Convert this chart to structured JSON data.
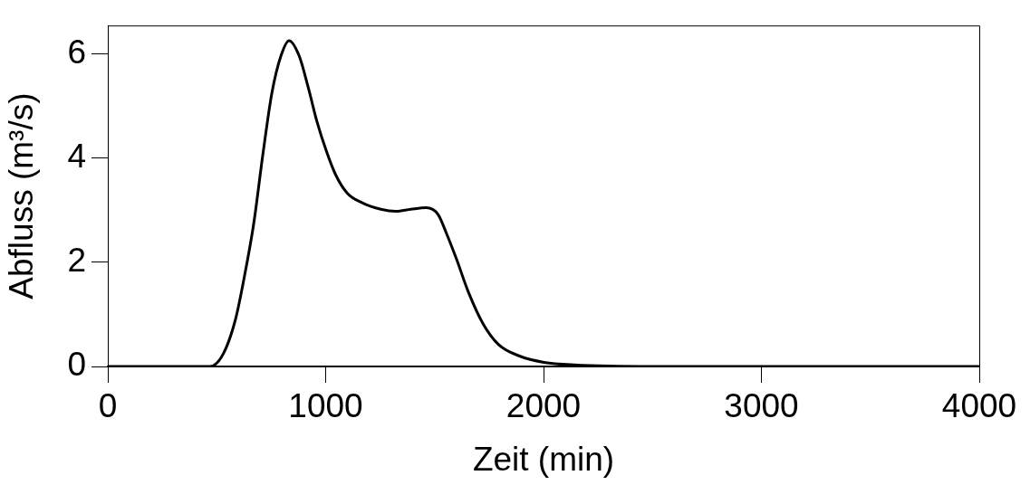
{
  "chart_data": {
    "type": "line",
    "xlabel": "Zeit (min)",
    "ylabel": "Abfluss (m³/s)",
    "xlim": [
      0,
      4000
    ],
    "ylim": [
      0,
      6.55
    ],
    "xticks": [
      0,
      1000,
      2000,
      3000,
      4000
    ],
    "yticks": [
      0,
      2,
      4,
      6
    ],
    "grid": false,
    "legend": false,
    "marker": "none",
    "line_style": "solid",
    "series": [
      {
        "color": "#000000",
        "x": [
          0,
          469,
          531,
          587,
          628,
          670,
          712,
          753,
          795,
          832,
          878,
          920,
          961,
          1003,
          1045,
          1099,
          1170,
          1253,
          1322,
          1391,
          1461,
          1516,
          1557,
          1599,
          1656,
          1724,
          1794,
          1890,
          2002,
          2140,
          2500,
          4000
        ],
        "values": [
          0,
          0,
          0.25,
          0.92,
          1.75,
          2.75,
          4.08,
          5.25,
          5.97,
          6.26,
          5.97,
          5.36,
          4.69,
          4.14,
          3.69,
          3.33,
          3.14,
          3.02,
          2.98,
          3.02,
          3.05,
          2.92,
          2.53,
          2.08,
          1.42,
          0.81,
          0.42,
          0.2,
          0.08,
          0.03,
          0,
          0
        ]
      }
    ]
  }
}
